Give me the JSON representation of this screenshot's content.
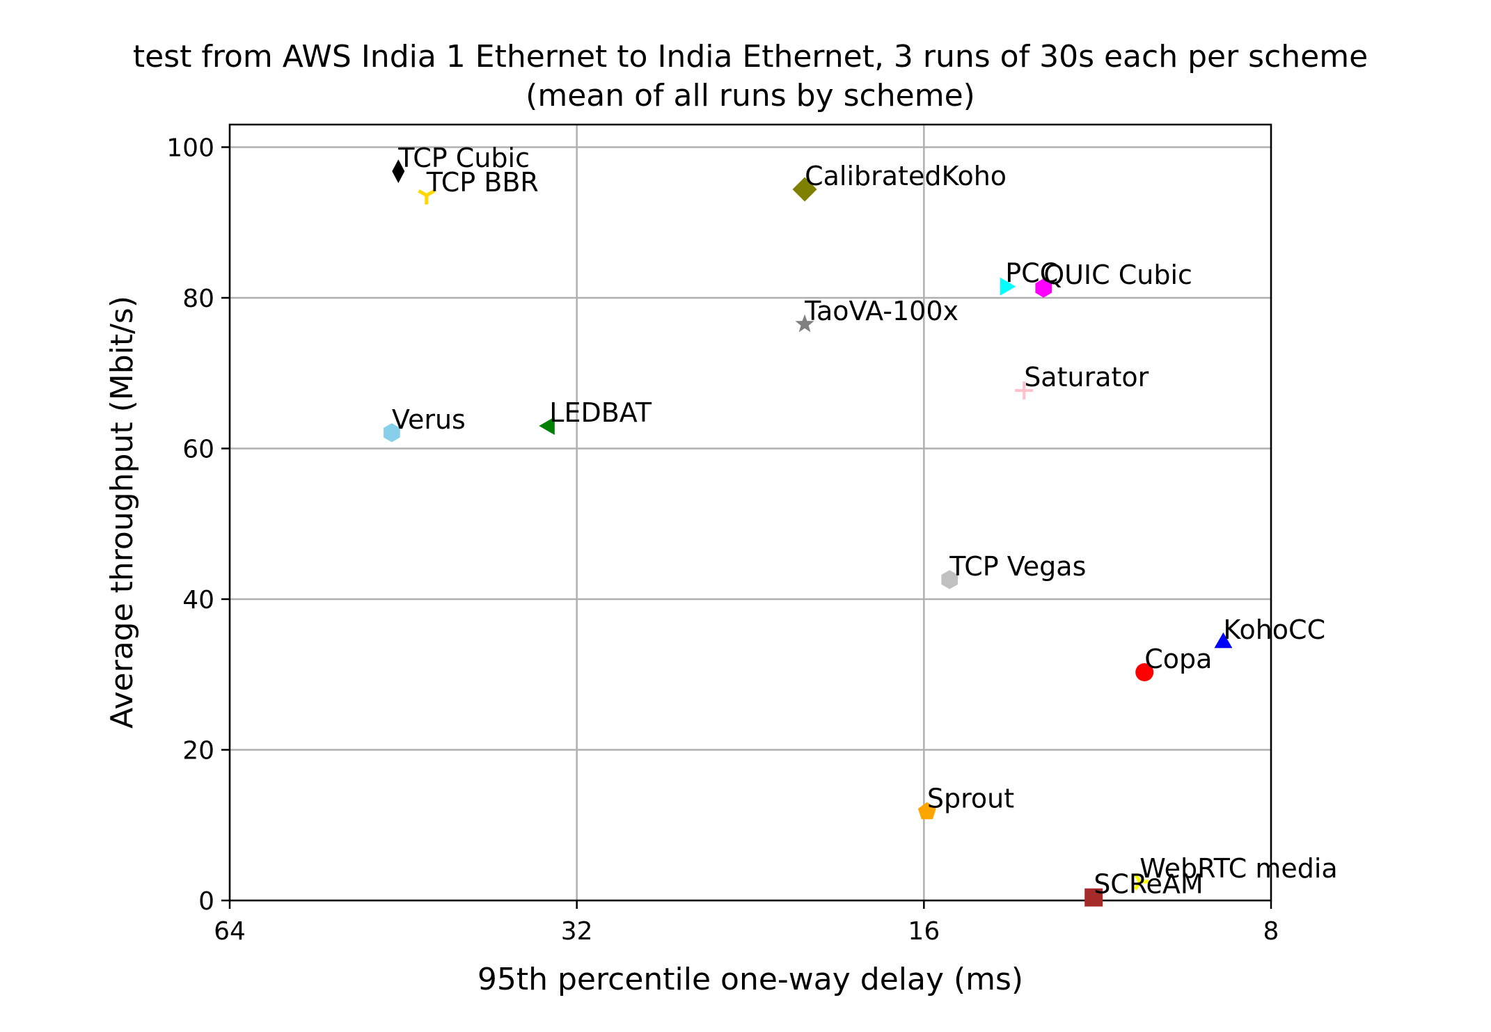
{
  "chart_data": {
    "type": "scatter",
    "title": "test from AWS India 1 Ethernet to India Ethernet, 3 runs of 30s each per scheme",
    "subtitle": "(mean of all runs by scheme)",
    "xlabel": "95th percentile one-way delay (ms)",
    "ylabel": "Average throughput (Mbit/s)",
    "x_scale": "log2",
    "x_inverted": true,
    "xlim": [
      64,
      8
    ],
    "ylim": [
      0,
      103
    ],
    "x_ticks": [
      64,
      32,
      16,
      8
    ],
    "x_tick_labels": [
      "64",
      "32",
      "16",
      "8"
    ],
    "y_ticks": [
      0,
      20,
      40,
      60,
      80,
      100
    ],
    "y_tick_labels": [
      "0",
      "20",
      "40",
      "60",
      "80",
      "100"
    ],
    "grid": true,
    "points": [
      {
        "name": "TCP Cubic",
        "x": 45.7,
        "y": 96.8,
        "marker": "thin_diamond",
        "color": "#000000"
      },
      {
        "name": "TCP BBR",
        "x": 43.2,
        "y": 93.6,
        "marker": "tri_down",
        "color": "#ffd700"
      },
      {
        "name": "CalibratedKoho",
        "x": 20.3,
        "y": 94.4,
        "marker": "diamond",
        "color": "#808000"
      },
      {
        "name": "PCC",
        "x": 13.6,
        "y": 81.5,
        "marker": "triangle_right",
        "color": "#00ffff"
      },
      {
        "name": "QUIC Cubic",
        "x": 12.6,
        "y": 81.3,
        "marker": "hexagon",
        "color": "#ff00ff"
      },
      {
        "name": "TaoVA-100x",
        "x": 20.3,
        "y": 76.5,
        "marker": "star",
        "color": "#808080"
      },
      {
        "name": "Saturator",
        "x": 13.1,
        "y": 67.7,
        "marker": "plus",
        "color": "#ffc0cb"
      },
      {
        "name": "Verus",
        "x": 46.3,
        "y": 62.1,
        "marker": "hexagon",
        "color": "#87ceeb"
      },
      {
        "name": "LEDBAT",
        "x": 33.8,
        "y": 63.0,
        "marker": "triangle_left",
        "color": "#008000"
      },
      {
        "name": "TCP Vegas",
        "x": 15.2,
        "y": 42.6,
        "marker": "hexagon",
        "color": "#c0c0c0"
      },
      {
        "name": "KohoCC",
        "x": 8.8,
        "y": 34.2,
        "marker": "triangle_up",
        "color": "#0000ff"
      },
      {
        "name": "Copa",
        "x": 10.3,
        "y": 30.3,
        "marker": "circle",
        "color": "#ff0000"
      },
      {
        "name": "Sprout",
        "x": 15.9,
        "y": 11.8,
        "marker": "pentagon",
        "color": "#ffa500"
      },
      {
        "name": "WebRTC media",
        "x": 10.4,
        "y": 2.5,
        "marker": "tri_right",
        "color": "#ffff00"
      },
      {
        "name": "SCReAM",
        "x": 11.4,
        "y": 0.4,
        "marker": "square",
        "color": "#a52a2a"
      }
    ]
  }
}
